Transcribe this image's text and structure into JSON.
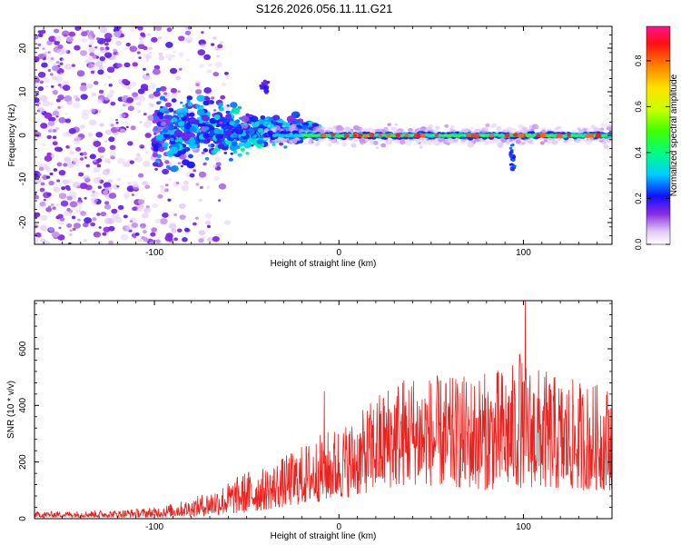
{
  "title": "S126.2026.056.11.11.G21",
  "colors": {
    "snr_line": "#e8231f",
    "axis": "#000000",
    "background": "#ffffff"
  },
  "chart_data": [
    {
      "type": "heatmap",
      "title": "S126.2026.056.11.11.G21",
      "xlabel": "Height of straight line (km)",
      "ylabel": "Frequency (Hz)",
      "xlim": [
        -165,
        148
      ],
      "ylim": [
        -25,
        25
      ],
      "x_ticks": [
        -100,
        0,
        100
      ],
      "y_ticks": [
        -20,
        -10,
        0,
        10,
        20
      ],
      "colorbar": {
        "label": "Normalized spectral amplitude",
        "range": [
          0,
          0.95
        ],
        "ticks": [
          0.0,
          0.2,
          0.4,
          0.6,
          0.8
        ]
      },
      "description_of_signal": {
        "ridge_frequency_hz": 0,
        "ridge_start_km": -60,
        "noise_region_km": [
          -165,
          -60
        ]
      }
    },
    {
      "type": "line",
      "xlabel": "Height of straight line (km)",
      "ylabel": "SNR (10 * v/v)",
      "xlim": [
        -165,
        148
      ],
      "ylim": [
        0,
        770
      ],
      "x_ticks": [
        -100,
        0,
        100
      ],
      "y_ticks": [
        0,
        200,
        400,
        600
      ],
      "envelope": {
        "x": [
          -165,
          -120,
          -100,
          -80,
          -60,
          -50,
          -40,
          -30,
          -20,
          -10,
          0,
          10,
          20,
          30,
          40,
          60,
          80,
          100,
          120,
          148
        ],
        "max": [
          25,
          30,
          40,
          70,
          130,
          170,
          180,
          220,
          260,
          300,
          330,
          360,
          440,
          500,
          520,
          500,
          520,
          560,
          500,
          470
        ],
        "min": [
          5,
          5,
          5,
          8,
          15,
          20,
          30,
          40,
          50,
          60,
          70,
          80,
          100,
          110,
          120,
          110,
          100,
          110,
          100,
          100
        ]
      },
      "peaks": [
        {
          "x": -8,
          "y": 450
        },
        {
          "x": 101,
          "y": 770
        },
        {
          "x": 98,
          "y": 580
        }
      ]
    }
  ]
}
